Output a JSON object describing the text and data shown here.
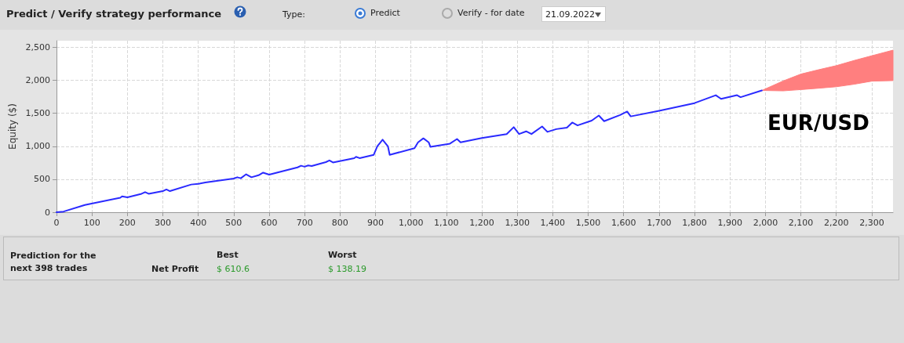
{
  "chart_data": {
    "type": "line",
    "title": "Predict / Verify strategy performance",
    "ylabel": "Equity ($)",
    "xlim": [
      0,
      2360
    ],
    "xticks": [
      0,
      100,
      200,
      300,
      400,
      500,
      600,
      700,
      800,
      900,
      {
        "value": 1000,
        "label": "1,000"
      },
      {
        "value": 1100,
        "label": "1,100"
      },
      {
        "value": 1200,
        "label": "1,200"
      },
      {
        "value": 1300,
        "label": "1,300"
      },
      {
        "value": 1400,
        "label": "1,400"
      },
      {
        "value": 1500,
        "label": "1,500"
      },
      {
        "value": 1600,
        "label": "1,600"
      },
      {
        "value": 1700,
        "label": "1,700"
      },
      {
        "value": 1800,
        "label": "1,800"
      },
      {
        "value": 1900,
        "label": "1,900"
      },
      {
        "value": 2000,
        "label": "2,000"
      },
      {
        "value": 2100,
        "label": "2,100"
      },
      {
        "value": 2200,
        "label": "2,200"
      },
      {
        "value": 2300,
        "label": "2,300"
      }
    ],
    "ylim": [
      0,
      2600
    ],
    "yticks": [
      0,
      500,
      {
        "value": 1000,
        "label": "1,000"
      },
      {
        "value": 1500,
        "label": "1,500"
      },
      {
        "value": 2000,
        "label": "2,000"
      },
      {
        "value": 2500,
        "label": "2,500"
      }
    ],
    "grid": true,
    "marker": "none",
    "line_style": "solid",
    "series": [
      {
        "color": "#2a2aff",
        "x": [
          0,
          20,
          80,
          180,
          185,
          200,
          240,
          250,
          260,
          300,
          310,
          320,
          380,
          400,
          420,
          500,
          510,
          520,
          535,
          550,
          570,
          583,
          600,
          680,
          690,
          700,
          710,
          720,
          760,
          770,
          780,
          840,
          845,
          855,
          895,
          905,
          920,
          935,
          940,
          1010,
          1020,
          1035,
          1050,
          1055,
          1100,
          1110,
          1130,
          1140,
          1200,
          1270,
          1290,
          1305,
          1325,
          1340,
          1370,
          1385,
          1410,
          1440,
          1455,
          1470,
          1510,
          1530,
          1545,
          1590,
          1610,
          1620,
          1700,
          1800,
          1860,
          1875,
          1920,
          1930,
          1990
        ],
        "values": [
          0,
          10,
          110,
          220,
          240,
          225,
          280,
          305,
          280,
          320,
          345,
          320,
          420,
          430,
          450,
          510,
          530,
          515,
          575,
          530,
          560,
          600,
          570,
          680,
          705,
          690,
          710,
          700,
          760,
          785,
          755,
          820,
          840,
          820,
          870,
          1000,
          1100,
          1000,
          870,
          970,
          1060,
          1120,
          1060,
          990,
          1030,
          1040,
          1110,
          1060,
          1124,
          1185,
          1290,
          1185,
          1226,
          1185,
          1300,
          1218,
          1260,
          1282,
          1360,
          1316,
          1389,
          1466,
          1380,
          1474,
          1526,
          1453,
          1538,
          1654,
          1774,
          1718,
          1774,
          1744,
          1846
        ]
      },
      {
        "type": "area",
        "color": "#ff7f7f",
        "x": [
          1990,
          2050,
          2100,
          2150,
          2200,
          2250,
          2300,
          2360
        ],
        "values": [
          null,
          null,
          null,
          null,
          null,
          null,
          null,
          null
        ],
        "lower": [
          1846,
          1840,
          1859,
          1880,
          1902,
          1940,
          1987,
          1996
        ],
        "upper": [
          1846,
          1990,
          2094,
          2160,
          2222,
          2300,
          2372,
          2457
        ]
      }
    ],
    "annotations": [
      "Type:",
      "Predict",
      "Verify - for date",
      "21.09.2022",
      "EUR/USD",
      "Prediction for the next 398 trades",
      "Net Profit",
      "Best",
      "Worst",
      "$ 610.6",
      "$ 138.19"
    ]
  }
}
